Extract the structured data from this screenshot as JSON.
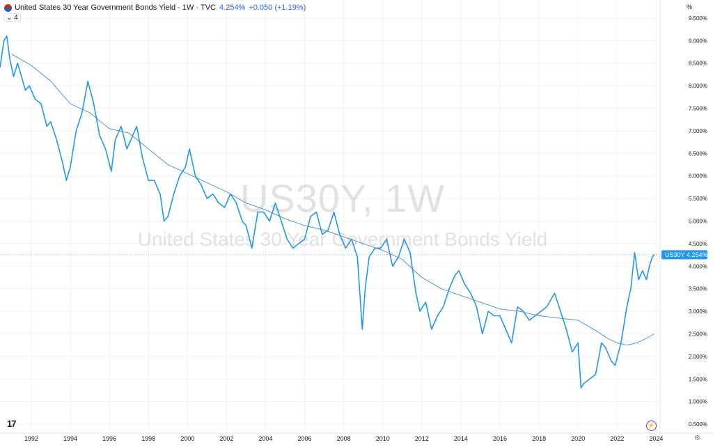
{
  "header": {
    "title": "United States 30 Year Government Bonds Yield · 1W · TVC",
    "price": "4.254%",
    "change": "+0.050 (+1.19%)",
    "indicator_count": "4"
  },
  "axis_unit": "%",
  "watermark": {
    "symbol": "US30Y, 1W",
    "description": "United States 30 Year Government Bonds Yield"
  },
  "price_label": {
    "symbol": "US30Y",
    "value": "4.254%"
  },
  "logo_text": "17",
  "colors": {
    "line": "#2196f3",
    "ma": "#3a8fd6",
    "label_bg": "#2196f3"
  },
  "chart_data": {
    "type": "line",
    "x_ticks": [
      "1992",
      "1994",
      "1996",
      "1998",
      "2000",
      "2002",
      "2004",
      "2006",
      "2008",
      "2010",
      "2012",
      "2014",
      "2016",
      "2018",
      "2020",
      "2022",
      "2024"
    ],
    "y_ticks": [
      "9.500%",
      "9.000%",
      "8.500%",
      "8.000%",
      "7.500%",
      "7.000%",
      "6.500%",
      "6.000%",
      "5.500%",
      "5.000%",
      "4.500%",
      "4.000%",
      "3.500%",
      "3.000%",
      "2.500%",
      "2.000%",
      "1.500%",
      "1.000%",
      "0.500%"
    ],
    "xlim": [
      1990.4,
      2024.2
    ],
    "ylim": [
      0.3,
      9.9
    ],
    "last_value": 4.254,
    "series": [
      {
        "x": [
          1990.4,
          1990.6,
          1990.75,
          1990.9,
          1991.1,
          1991.3,
          1991.5,
          1991.7,
          1991.9,
          1992.2,
          1992.5,
          1992.8,
          1993.0,
          1993.3,
          1993.6,
          1993.8,
          1994.0,
          1994.3,
          1994.6,
          1994.9,
          1995.2,
          1995.5,
          1995.8,
          1996.1,
          1996.3,
          1996.6,
          1996.9,
          1997.1,
          1997.4,
          1997.7,
          1998.0,
          1998.3,
          1998.6,
          1998.8,
          1999.0,
          1999.3,
          1999.6,
          1999.9,
          2000.1,
          2000.4,
          2000.7,
          2001.0,
          2001.3,
          2001.6,
          2001.9,
          2002.2,
          2002.5,
          2002.8,
          2003.0,
          2003.3,
          2003.6,
          2003.9,
          2004.2,
          2004.5,
          2004.8,
          2005.1,
          2005.4,
          2005.7,
          2006.0,
          2006.3,
          2006.6,
          2006.9,
          2007.2,
          2007.5,
          2007.8,
          2008.1,
          2008.4,
          2008.7,
          2008.95,
          2009.1,
          2009.3,
          2009.6,
          2009.9,
          2010.2,
          2010.5,
          2010.8,
          2011.1,
          2011.4,
          2011.7,
          2011.9,
          2012.2,
          2012.5,
          2012.8,
          2013.1,
          2013.4,
          2013.7,
          2013.9,
          2014.2,
          2014.5,
          2014.8,
          2015.1,
          2015.4,
          2015.7,
          2016.0,
          2016.3,
          2016.6,
          2016.9,
          2017.2,
          2017.5,
          2017.8,
          2018.1,
          2018.4,
          2018.8,
          2019.1,
          2019.4,
          2019.7,
          2020.0,
          2020.15,
          2020.3,
          2020.6,
          2020.9,
          2021.2,
          2021.4,
          2021.7,
          2021.9,
          2022.2,
          2022.5,
          2022.7,
          2022.9,
          2023.1,
          2023.3,
          2023.5,
          2023.65,
          2023.8,
          2023.9
        ],
        "y": [
          8.4,
          9.0,
          9.1,
          8.6,
          8.2,
          8.5,
          8.2,
          7.9,
          8.0,
          7.7,
          7.6,
          7.1,
          7.2,
          6.8,
          6.3,
          5.9,
          6.2,
          7.0,
          7.4,
          8.1,
          7.6,
          6.9,
          6.6,
          6.1,
          6.8,
          7.1,
          6.6,
          6.8,
          7.1,
          6.4,
          5.9,
          5.9,
          5.6,
          5.0,
          5.1,
          5.6,
          6.0,
          6.2,
          6.6,
          6.0,
          5.8,
          5.5,
          5.6,
          5.4,
          5.3,
          5.6,
          5.4,
          5.0,
          4.9,
          4.4,
          5.2,
          5.2,
          5.0,
          5.4,
          5.0,
          4.6,
          4.4,
          4.5,
          4.6,
          5.1,
          5.2,
          4.7,
          4.8,
          5.2,
          4.7,
          4.4,
          4.6,
          4.2,
          2.6,
          3.5,
          4.2,
          4.4,
          4.4,
          4.6,
          4.0,
          4.2,
          4.6,
          4.3,
          3.4,
          3.0,
          3.2,
          2.6,
          2.9,
          3.1,
          3.5,
          3.8,
          3.9,
          3.6,
          3.4,
          3.1,
          2.5,
          3.0,
          2.9,
          2.9,
          2.6,
          2.3,
          3.1,
          3.0,
          2.8,
          2.9,
          3.0,
          3.1,
          3.4,
          3.0,
          2.6,
          2.1,
          2.3,
          1.3,
          1.4,
          1.5,
          1.6,
          2.3,
          2.2,
          1.9,
          1.8,
          2.3,
          3.1,
          3.5,
          4.3,
          3.7,
          3.9,
          3.7,
          4.0,
          4.2,
          4.254
        ]
      },
      {
        "x": [
          1991.0,
          1992.0,
          1993.0,
          1994.0,
          1995.0,
          1996.0,
          1997.0,
          1998.0,
          1999.0,
          2000.0,
          2001.0,
          2002.0,
          2003.0,
          2004.0,
          2005.0,
          2006.0,
          2007.0,
          2008.0,
          2009.0,
          2010.0,
          2011.0,
          2012.0,
          2013.0,
          2014.0,
          2015.0,
          2016.0,
          2017.0,
          2018.0,
          2019.0,
          2020.0,
          2021.0,
          2021.5,
          2022.0,
          2022.5,
          2023.0,
          2023.5,
          2023.9
        ],
        "y": [
          8.7,
          8.45,
          8.1,
          7.6,
          7.4,
          7.05,
          6.95,
          6.6,
          6.25,
          6.05,
          5.85,
          5.65,
          5.4,
          5.25,
          5.05,
          4.9,
          4.8,
          4.65,
          4.5,
          4.35,
          4.15,
          3.75,
          3.5,
          3.35,
          3.2,
          3.05,
          3.0,
          2.9,
          2.85,
          2.8,
          2.55,
          2.4,
          2.3,
          2.25,
          2.3,
          2.4,
          2.5
        ]
      }
    ]
  }
}
